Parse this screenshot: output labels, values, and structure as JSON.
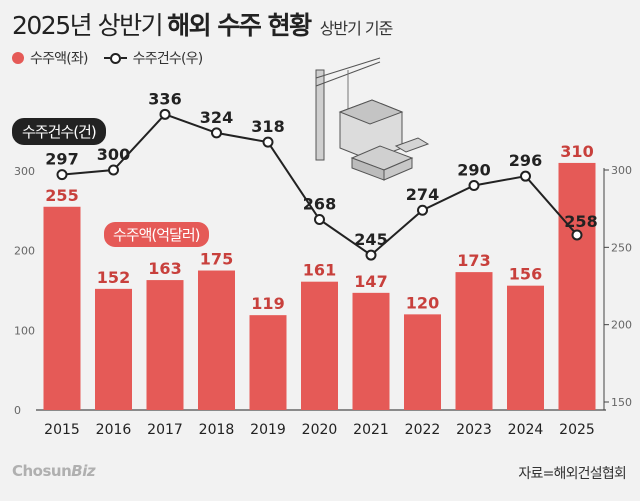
{
  "title": {
    "year_part": "2025년 상반기",
    "strong_part": "해외 수주 현황",
    "sub": "상반기 기준"
  },
  "legend": {
    "amount": "수주액(좌)",
    "count": "수주건수(우)"
  },
  "tags": {
    "count_axis": "수주건수(건)",
    "amount_axis": "수주액(억달러)"
  },
  "source": "자료=해외건설협회",
  "logo": {
    "main": "Chosun",
    "biz": "Biz"
  },
  "colors": {
    "bar": "#e55a57",
    "bar_label": "#c8403c",
    "line": "#222222",
    "background": "#f2f2f2"
  },
  "chart_data": {
    "type": "bar",
    "categories": [
      "2015",
      "2016",
      "2017",
      "2018",
      "2019",
      "2020",
      "2021",
      "2022",
      "2023",
      "2024",
      "2025"
    ],
    "series": [
      {
        "name": "수주액(좌)",
        "type": "bar",
        "axis": "left",
        "values": [
          255,
          152,
          163,
          175,
          119,
          161,
          147,
          120,
          173,
          156,
          310
        ]
      },
      {
        "name": "수주건수(우)",
        "type": "line",
        "axis": "right",
        "values": [
          297,
          300,
          336,
          324,
          318,
          268,
          245,
          274,
          290,
          296,
          258
        ]
      }
    ],
    "left_axis": {
      "ticks": [
        0,
        100,
        200,
        300
      ],
      "range": [
        0,
        310
      ]
    },
    "right_axis": {
      "ticks": [
        150,
        200,
        250,
        300
      ],
      "range": [
        150,
        310
      ]
    },
    "grid": false
  }
}
